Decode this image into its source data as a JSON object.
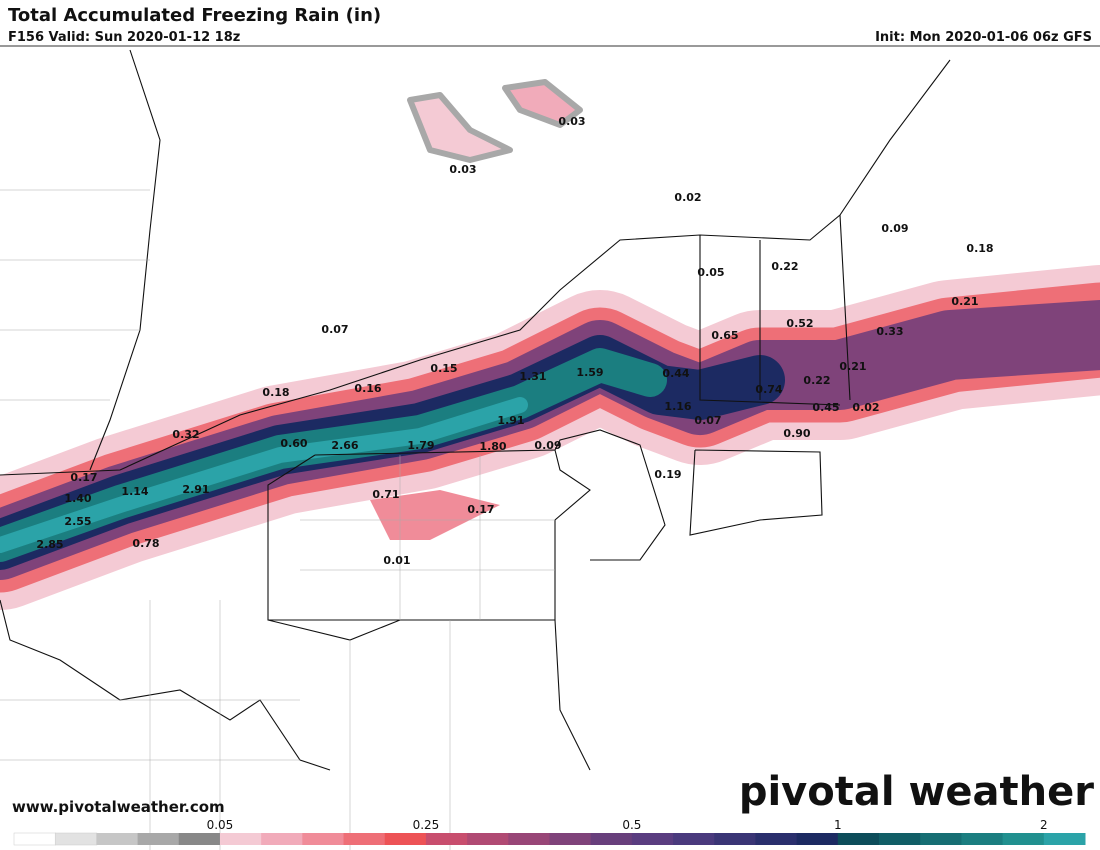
{
  "header": {
    "title": "Total Accumulated Freezing Rain (in)",
    "valid": "F156 Valid: Sun 2020-01-12 18z",
    "init": "Init: Mon 2020-01-06 06z GFS"
  },
  "map_labels": [
    "0.03",
    "0.03",
    "0.02",
    "0.09",
    "0.18",
    "0.05",
    "0.22",
    "0.07",
    "0.52",
    "0.65",
    "0.33",
    "0.21",
    "0.15",
    "1.31",
    "1.59",
    "0.44",
    "0.21",
    "0.22",
    "0.18",
    "0.16",
    "0.74",
    "1.16",
    "0.45",
    "0.02",
    "1.91",
    "0.07",
    "0.90",
    "0.32",
    "0.60",
    "2.66",
    "1.79",
    "1.80",
    "0.09",
    "0.19",
    "0.17",
    "1.40",
    "1.14",
    "2.91",
    "0.71",
    "0.17",
    "2.55",
    "2.85",
    "0.78",
    "0.01"
  ],
  "colorbar": {
    "colors": [
      "#ffffff",
      "#e2e2e2",
      "#c6c6c6",
      "#a8a8a8",
      "#888888",
      "#f4cad4",
      "#f1abba",
      "#f08c99",
      "#ee6f77",
      "#ed5356",
      "#c84e6e",
      "#b04a73",
      "#984677",
      "#7f437a",
      "#683f7c",
      "#5a3d80",
      "#4a3a7d",
      "#3a3575",
      "#2a2f6d",
      "#1c2a62",
      "#0d4d5a",
      "#115e66",
      "#166e73",
      "#1b7e80",
      "#21908f",
      "#2ba3a8"
    ],
    "ticks": [
      0.05,
      0.25,
      0.5,
      1,
      2
    ]
  },
  "footer": {
    "website": "www.pivotalweather.com",
    "logo": "pivotal weather"
  }
}
